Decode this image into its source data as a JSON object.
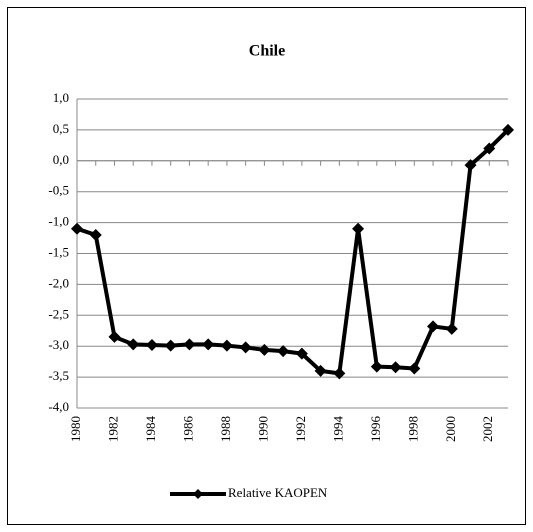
{
  "chart_data": {
    "type": "line",
    "title": "Chile",
    "categories": [
      "1980",
      null,
      "1982",
      null,
      "1984",
      null,
      "1986",
      null,
      "1988",
      null,
      "1990",
      null,
      "1992",
      null,
      "1994",
      null,
      "1996",
      null,
      "1998",
      null,
      "2000",
      null,
      "2002",
      null
    ],
    "series": [
      {
        "name": "Relative KAOPEN",
        "color": "#000000",
        "values": [
          -1.1,
          -1.2,
          -2.85,
          -2.97,
          -2.98,
          -2.99,
          -2.97,
          -2.97,
          -2.99,
          -3.02,
          -3.06,
          -3.08,
          -3.12,
          -3.4,
          -3.44,
          -1.1,
          -3.33,
          -3.34,
          -3.36,
          -2.68,
          -2.72,
          -0.07,
          0.2,
          0.5
        ]
      }
    ],
    "ylim": [
      -4,
      1
    ],
    "yticks": [
      {
        "value": -4,
        "label": "-4,0"
      },
      {
        "value": -3.5,
        "label": "-3,5"
      },
      {
        "value": -3,
        "label": "-3,0"
      },
      {
        "value": -2.5,
        "label": "-2,5"
      },
      {
        "value": -2,
        "label": "-2,0"
      },
      {
        "value": -1.5,
        "label": "-1,5"
      },
      {
        "value": -1,
        "label": "-1,0"
      },
      {
        "value": -0.5,
        "label": "-0,5"
      },
      {
        "value": 0,
        "label": "0,0"
      },
      {
        "value": 0.5,
        "label": "0,5"
      },
      {
        "value": 1,
        "label": "1,0"
      }
    ],
    "grid": true,
    "legend": "bottom"
  }
}
